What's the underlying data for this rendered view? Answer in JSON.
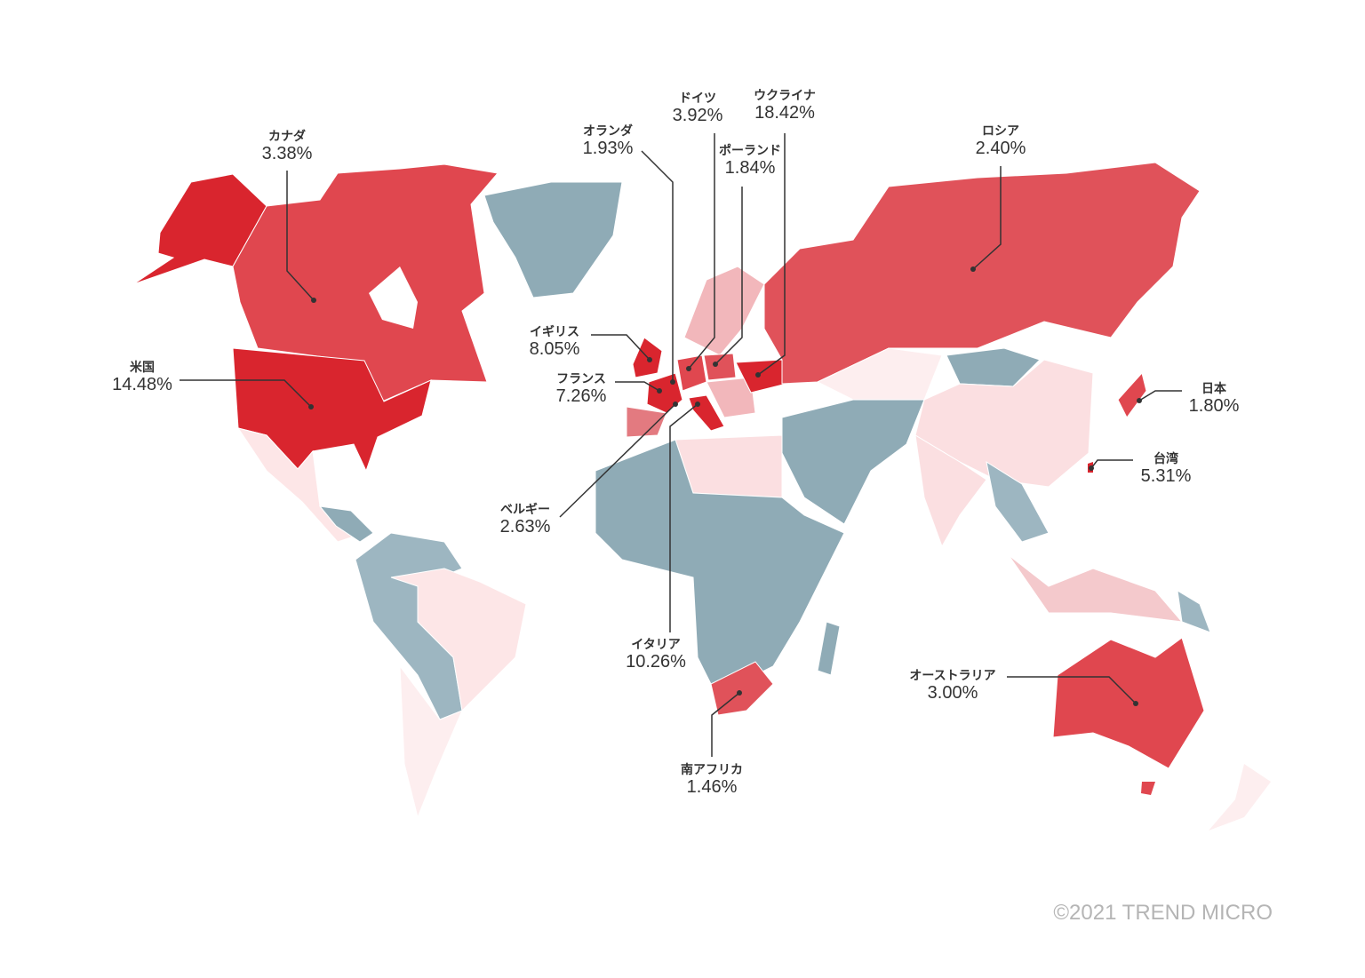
{
  "legend_colors": {
    "highest": "#d9252e",
    "high": "#e0525a",
    "medium": "#f2b7bb",
    "low": "#fde6e7",
    "none": "#8fabb6"
  },
  "countries": [
    {
      "name": "カナダ",
      "value": "3.38%"
    },
    {
      "name": "米国",
      "value": "14.48%"
    },
    {
      "name": "オランダ",
      "value": "1.93%"
    },
    {
      "name": "ドイツ",
      "value": "3.92%"
    },
    {
      "name": "ポーランド",
      "value": "1.84%"
    },
    {
      "name": "ウクライナ",
      "value": "18.42%"
    },
    {
      "name": "ロシア",
      "value": "2.40%"
    },
    {
      "name": "イギリス",
      "value": "8.05%"
    },
    {
      "name": "フランス",
      "value": "7.26%"
    },
    {
      "name": "ベルギー",
      "value": "2.63%"
    },
    {
      "name": "イタリア",
      "value": "10.26%"
    },
    {
      "name": "南アフリカ",
      "value": "1.46%"
    },
    {
      "name": "日本",
      "value": "1.80%"
    },
    {
      "name": "台湾",
      "value": "5.31%"
    },
    {
      "name": "オーストラリア",
      "value": "3.00%"
    }
  ],
  "copyright": "©2021 TREND MICRO"
}
